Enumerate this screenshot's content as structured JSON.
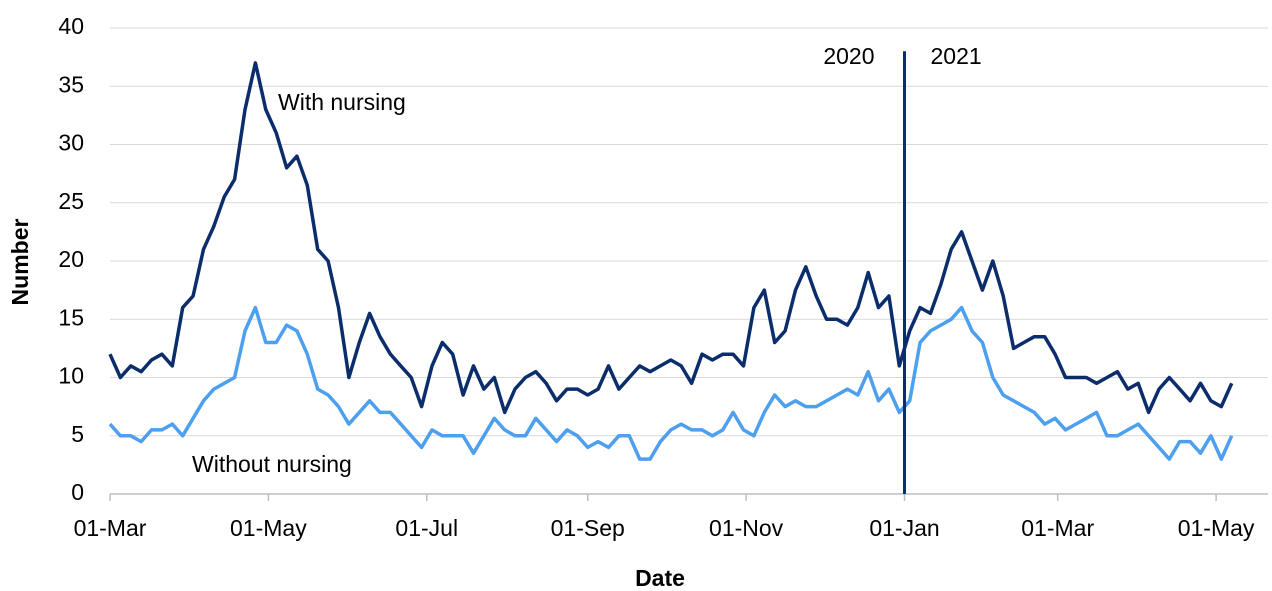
{
  "chart_data": {
    "type": "line",
    "xlabel": "Date",
    "ylabel": "Number",
    "x": [
      0,
      4,
      8,
      12,
      16,
      20,
      24,
      28,
      32,
      36,
      40,
      44,
      48,
      52,
      56,
      60,
      64,
      68,
      72,
      76,
      80,
      84,
      88,
      92,
      96,
      100,
      104,
      108,
      112,
      116,
      120,
      124,
      128,
      132,
      136,
      140,
      144,
      148,
      152,
      156,
      160,
      164,
      168,
      172,
      176,
      180,
      184,
      188,
      192,
      196,
      200,
      204,
      208,
      212,
      216,
      220,
      224,
      228,
      232,
      236,
      240,
      244,
      248,
      252,
      256,
      260,
      264,
      268,
      272,
      276,
      280,
      284,
      288,
      292,
      296,
      300,
      304,
      308,
      312,
      316,
      320,
      324,
      328,
      332,
      336,
      340,
      344,
      348,
      352,
      356,
      360,
      364,
      368,
      372,
      376,
      380,
      384,
      388,
      392,
      396,
      400,
      404,
      408,
      412,
      416,
      420,
      424,
      428,
      432
    ],
    "series": [
      {
        "name": "With nursing",
        "color": "#0b2d6b",
        "values": [
          12,
          10,
          11,
          10.5,
          11.5,
          12,
          11,
          16,
          17,
          21,
          23,
          25.5,
          27,
          33,
          37,
          33,
          31,
          28,
          29,
          26.5,
          21,
          20,
          16,
          10,
          13,
          15.5,
          13.5,
          12,
          11,
          10,
          7.5,
          11,
          13,
          12,
          8.5,
          11,
          9,
          10,
          7,
          9,
          10,
          10.5,
          9.5,
          8,
          9,
          9,
          8.5,
          9,
          11,
          9,
          10,
          11,
          10.5,
          11,
          11.5,
          11,
          9.5,
          12,
          11.5,
          12,
          12,
          11,
          16,
          17.5,
          13,
          14,
          17.5,
          19.5,
          17,
          15,
          15,
          14.5,
          16,
          19,
          16,
          17,
          11,
          14,
          16,
          15.5,
          18,
          21,
          22.5,
          20,
          17.5,
          20,
          17,
          12.5,
          13,
          13.5,
          13.5,
          12,
          10,
          10,
          10,
          9.5,
          10,
          10.5,
          9,
          9.5,
          7,
          9,
          10,
          9,
          8,
          9.5,
          8,
          7.5,
          9.5
        ]
      },
      {
        "name": "Without nursing",
        "color": "#4d9ff0",
        "values": [
          6,
          5,
          5,
          4.5,
          5.5,
          5.5,
          6,
          5,
          6.5,
          8,
          9,
          9.5,
          10,
          14,
          16,
          13,
          13,
          14.5,
          14,
          12,
          9,
          8.5,
          7.5,
          6,
          7,
          8,
          7,
          7,
          6,
          5,
          4,
          5.5,
          5,
          5,
          5,
          3.5,
          5,
          6.5,
          5.5,
          5,
          5,
          6.5,
          5.5,
          4.5,
          5.5,
          5,
          4,
          4.5,
          4,
          5,
          5,
          3,
          3,
          4.5,
          5.5,
          6,
          5.5,
          5.5,
          5,
          5.5,
          7,
          5.5,
          5,
          7,
          8.5,
          7.5,
          8,
          7.5,
          7.5,
          8,
          8.5,
          9,
          8.5,
          10.5,
          8,
          9,
          7,
          8,
          13,
          14,
          14.5,
          15,
          16,
          14,
          13,
          10,
          8.5,
          8,
          7.5,
          7,
          6,
          6.5,
          5.5,
          6,
          6.5,
          7,
          5,
          5,
          5.5,
          6,
          5,
          4,
          3,
          4.5,
          4.5,
          3.5,
          5,
          3,
          5
        ]
      }
    ],
    "xlim": [
      0,
      446
    ],
    "xticks": [
      {
        "value": 0,
        "label": "01-Mar"
      },
      {
        "value": 61,
        "label": "01-May"
      },
      {
        "value": 122,
        "label": "01-Jul"
      },
      {
        "value": 184,
        "label": "01-Sep"
      },
      {
        "value": 245,
        "label": "01-Nov"
      },
      {
        "value": 306,
        "label": "01-Jan"
      },
      {
        "value": 365,
        "label": "01-Mar"
      },
      {
        "value": 426,
        "label": "01-May"
      }
    ],
    "ylim": [
      0,
      40
    ],
    "yticks": [
      0,
      5,
      10,
      15,
      20,
      25,
      30,
      35,
      40
    ],
    "grid": true,
    "divider": {
      "x": 306,
      "top": 38,
      "color": "#0b2d6b",
      "labels": [
        "2020",
        "2021"
      ]
    }
  }
}
